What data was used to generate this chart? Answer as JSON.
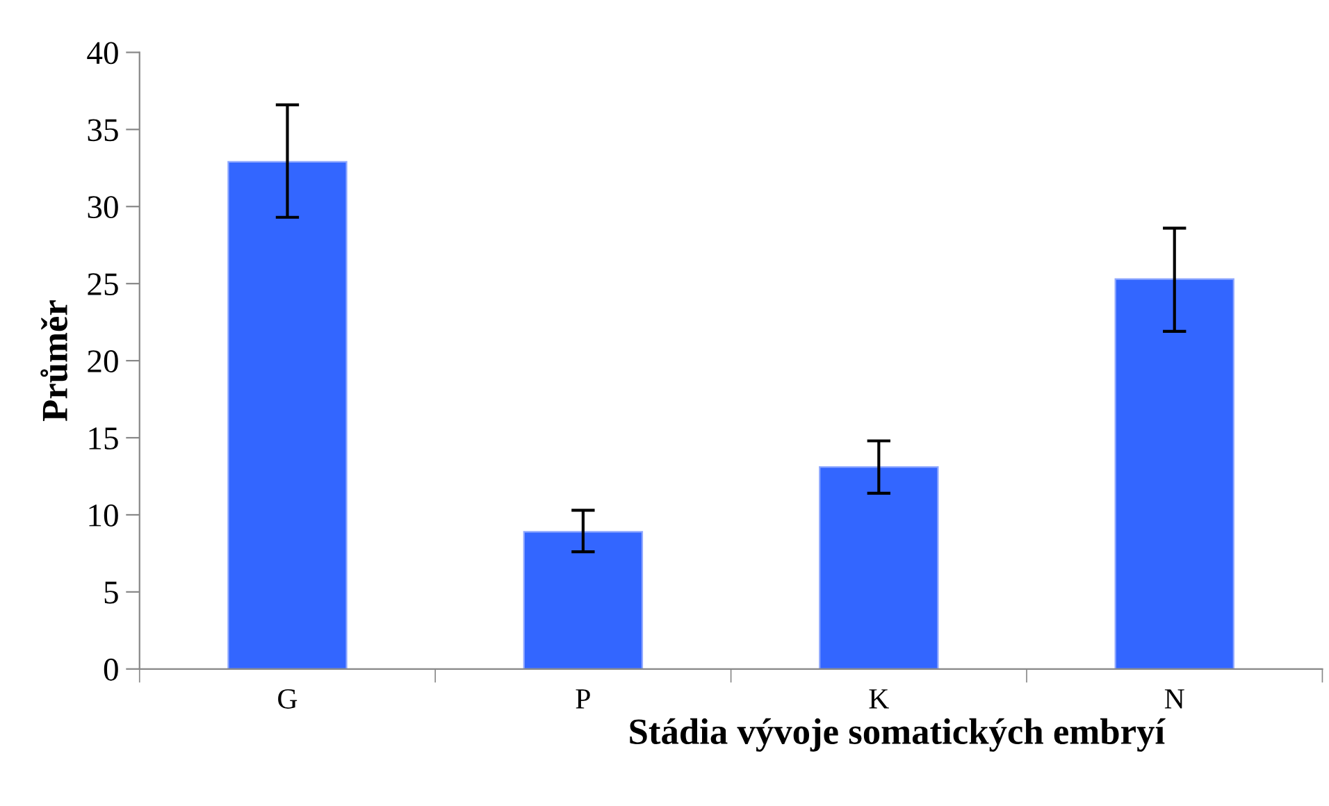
{
  "chart_data": {
    "type": "bar",
    "xlabel": "Stádia vývoje somatických embryí",
    "ylabel": "Průměr",
    "categories": [
      "G",
      "P",
      "K",
      "N"
    ],
    "values": [
      32.9,
      8.9,
      13.1,
      25.3
    ],
    "errors": [
      [
        29.3,
        36.6
      ],
      [
        7.6,
        10.3
      ],
      [
        11.4,
        14.8
      ],
      [
        21.9,
        28.6
      ]
    ],
    "color": "#3366ff",
    "ylim": [
      0,
      40
    ],
    "yticks": [
      0,
      5,
      10,
      15,
      20,
      25,
      30,
      35,
      40
    ],
    "grid": false,
    "legend": false
  }
}
